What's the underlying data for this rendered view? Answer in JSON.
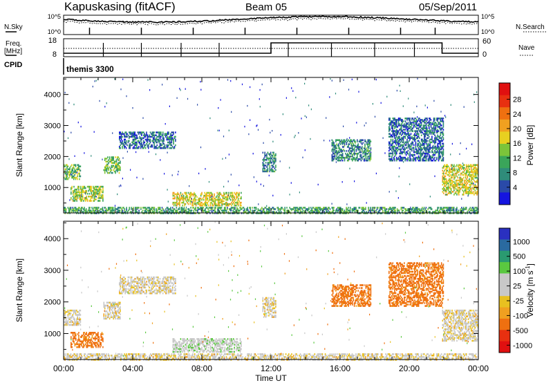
{
  "header": {
    "station": "Kapuskasing (fitACF)",
    "beam": "Beam 05",
    "date": "05/Sep/2011"
  },
  "top_panel": {
    "left_label": "N.Sky",
    "left_ticks": [
      "10^5",
      "10^0"
    ],
    "right_label": "N.Search",
    "right_ticks": [
      "10^5",
      "10^0"
    ]
  },
  "freq_panel": {
    "left_label_1": "Freq.",
    "left_label_2": "[MHz]",
    "left_ticks": [
      "18",
      "8"
    ],
    "right_label": "Nave",
    "right_ticks": [
      "60",
      "0"
    ]
  },
  "cpid_panel": {
    "label": "CPID",
    "program": "themis 3300"
  },
  "chart_data": [
    {
      "type": "heatmap",
      "name": "power",
      "ylabel": "Slant Range [km]",
      "xlabel": "Time UT",
      "xlim": [
        0,
        24
      ],
      "ylim": [
        180,
        4550
      ],
      "x_ticks": [
        "00:00",
        "04:00",
        "08:00",
        "12:00",
        "16:00",
        "20:00",
        "00:00"
      ],
      "y_ticks": [
        1000,
        2000,
        3000,
        4000
      ],
      "colorbar_label": "Power [dB]",
      "colorbar_ticks": [
        "4",
        "8",
        "12",
        "16",
        "20",
        "24",
        "28"
      ],
      "colorbar_colors": [
        "#1515e0",
        "#2a4aa8",
        "#2f8c7a",
        "#3aa55a",
        "#7cc43a",
        "#e8d020",
        "#f0a020",
        "#ef7010",
        "#e83010",
        "#e01010"
      ],
      "regions": [
        {
          "t0": 0.0,
          "t1": 1.0,
          "r0": 1300,
          "r1": 1800,
          "level": 12
        },
        {
          "t0": 0.4,
          "t1": 2.3,
          "r0": 600,
          "r1": 1100,
          "level": 14
        },
        {
          "t0": 2.3,
          "t1": 3.3,
          "r0": 1500,
          "r1": 2050,
          "level": 12
        },
        {
          "t0": 3.2,
          "t1": 6.5,
          "r0": 2300,
          "r1": 2850,
          "level": 6
        },
        {
          "t0": 6.3,
          "t1": 10.3,
          "r0": 450,
          "r1": 900,
          "level": 16
        },
        {
          "t0": 0.0,
          "t1": 24.0,
          "r0": 200,
          "r1": 420,
          "level": 10
        },
        {
          "t0": 11.5,
          "t1": 12.3,
          "r0": 1550,
          "r1": 2200,
          "level": 8
        },
        {
          "t0": 15.5,
          "t1": 17.8,
          "r0": 1900,
          "r1": 2600,
          "level": 8
        },
        {
          "t0": 18.8,
          "t1": 22.0,
          "r0": 1900,
          "r1": 3300,
          "level": 6
        },
        {
          "t0": 21.9,
          "t1": 24.0,
          "r0": 800,
          "r1": 1800,
          "level": 16
        }
      ]
    },
    {
      "type": "heatmap",
      "name": "velocity",
      "ylabel": "Slant Range [km]",
      "xlabel": "Time UT",
      "xlim": [
        0,
        24
      ],
      "ylim": [
        180,
        4550
      ],
      "x_ticks": [
        "00:00",
        "04:00",
        "08:00",
        "12:00",
        "16:00",
        "20:00",
        "00:00"
      ],
      "y_ticks": [
        1000,
        2000,
        3000,
        4000
      ],
      "colorbar_label_main": "Velocity [m s",
      "colorbar_label_sup": "-1",
      "colorbar_label_end": "]",
      "colorbar_ticks": [
        "1000",
        "500",
        "100",
        "25",
        "-25",
        "-100",
        "-500",
        "-1000"
      ],
      "colorbar_colors": [
        "#2a30c0",
        "#2a6aa0",
        "#2a9a70",
        "#5ac840",
        "#c8c8c8",
        "#c8c8c8",
        "#e8c020",
        "#f0a020",
        "#ef7010",
        "#e83010",
        "#e01010"
      ],
      "regions": [
        {
          "t0": 0.0,
          "t1": 1.0,
          "r0": 1300,
          "r1": 1800,
          "level": 0
        },
        {
          "t0": 0.4,
          "t1": 2.3,
          "r0": 600,
          "r1": 1100,
          "level": -150
        },
        {
          "t0": 2.3,
          "t1": 3.3,
          "r0": 1500,
          "r1": 2050,
          "level": 0
        },
        {
          "t0": 3.2,
          "t1": 6.5,
          "r0": 2300,
          "r1": 2850,
          "level": 0
        },
        {
          "t0": 6.3,
          "t1": 10.3,
          "r0": 450,
          "r1": 900,
          "level": 60
        },
        {
          "t0": 0.0,
          "t1": 24.0,
          "r0": 200,
          "r1": 420,
          "level": 0
        },
        {
          "t0": 11.5,
          "t1": 12.3,
          "r0": 1550,
          "r1": 2200,
          "level": 0
        },
        {
          "t0": 15.5,
          "t1": 17.8,
          "r0": 1900,
          "r1": 2600,
          "level": -150
        },
        {
          "t0": 18.8,
          "t1": 22.0,
          "r0": 1900,
          "r1": 3300,
          "level": -150
        },
        {
          "t0": 21.9,
          "t1": 24.0,
          "r0": 800,
          "r1": 1800,
          "level": 0
        }
      ]
    }
  ]
}
